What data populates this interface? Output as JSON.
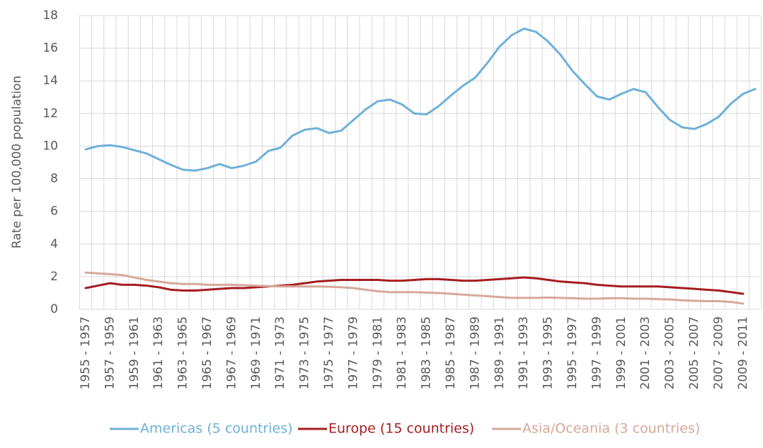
{
  "chart_data": {
    "type": "line",
    "y_label": "Rate per 100,000 population",
    "categories": [
      "1955 - 1957",
      null,
      "1957 - 1959",
      null,
      "1959 - 1961",
      null,
      "1961 - 1963",
      null,
      "1963 - 1965",
      null,
      "1965 - 1967",
      null,
      "1967 - 1969",
      null,
      "1969 - 1971",
      null,
      "1971 - 1973",
      null,
      "1973 - 1975",
      null,
      "1975 - 1977",
      null,
      "1977 - 1979",
      null,
      "1979 - 1981",
      null,
      "1981 - 1983",
      null,
      "1983 - 1985",
      null,
      "1985 - 1987",
      null,
      "1987 - 1989",
      null,
      "1989 - 1991",
      null,
      "1991 - 1993",
      null,
      "1993 - 1995",
      null,
      "1995 - 1997",
      null,
      "1997 - 1999",
      null,
      "1999 - 2001",
      null,
      "2001 - 2003",
      null,
      "2003 - 2005",
      null,
      "2005 - 2007",
      null,
      "2007 - 2009",
      null,
      "2009 - 2011",
      null
    ],
    "series": [
      {
        "name": "Americas (5 countries)",
        "color": "#6eb0d9",
        "values": [
          9.8,
          10.0,
          10.05,
          9.95,
          9.75,
          9.55,
          9.2,
          8.85,
          8.55,
          8.5,
          8.65,
          8.9,
          8.65,
          8.8,
          9.05,
          9.7,
          9.9,
          10.65,
          11.0,
          11.1,
          10.8,
          10.95,
          11.6,
          12.25,
          12.75,
          12.85,
          12.55,
          12.0,
          11.95,
          12.45,
          13.1,
          13.7,
          14.2,
          15.1,
          16.1,
          16.8,
          17.2,
          17.0,
          16.4,
          15.6,
          14.6,
          13.8,
          13.05,
          12.85,
          13.2,
          13.5,
          13.3,
          12.4,
          11.6,
          11.15,
          11.05,
          11.35,
          11.8,
          12.6,
          13.2,
          13.5
        ]
      },
      {
        "name": "Europe (15 countries)",
        "color": "#a51c20",
        "values": [
          1.3,
          1.45,
          1.6,
          1.5,
          1.5,
          1.45,
          1.35,
          1.2,
          1.15,
          1.15,
          1.2,
          1.25,
          1.3,
          1.3,
          1.35,
          1.4,
          1.45,
          1.5,
          1.6,
          1.7,
          1.75,
          1.8,
          1.8,
          1.8,
          1.8,
          1.75,
          1.75,
          1.8,
          1.85,
          1.85,
          1.8,
          1.75,
          1.75,
          1.8,
          1.85,
          1.9,
          1.95,
          1.9,
          1.8,
          1.7,
          1.65,
          1.6,
          1.5,
          1.45,
          1.4,
          1.4,
          1.4,
          1.4,
          1.35,
          1.3,
          1.25,
          1.2,
          1.15,
          1.05,
          0.95,
          null
        ]
      },
      {
        "name": "Asia/Oceania (3 countries)",
        "color": "#d6a899",
        "values": [
          2.25,
          2.2,
          2.15,
          2.1,
          1.95,
          1.8,
          1.7,
          1.6,
          1.55,
          1.55,
          1.5,
          1.5,
          1.5,
          1.48,
          1.45,
          1.42,
          1.4,
          1.4,
          1.4,
          1.4,
          1.38,
          1.35,
          1.3,
          1.2,
          1.1,
          1.05,
          1.05,
          1.05,
          1.02,
          1.0,
          0.95,
          0.9,
          0.85,
          0.8,
          0.75,
          0.7,
          0.7,
          0.7,
          0.72,
          0.7,
          0.68,
          0.65,
          0.65,
          0.68,
          0.68,
          0.65,
          0.65,
          0.62,
          0.6,
          0.55,
          0.52,
          0.5,
          0.5,
          0.45,
          0.35,
          null
        ]
      }
    ],
    "ylim": [
      0,
      18
    ],
    "yticks": [
      0,
      2,
      4,
      6,
      8,
      10,
      12,
      14,
      16,
      18
    ],
    "grid": true,
    "legend": "bottom"
  }
}
